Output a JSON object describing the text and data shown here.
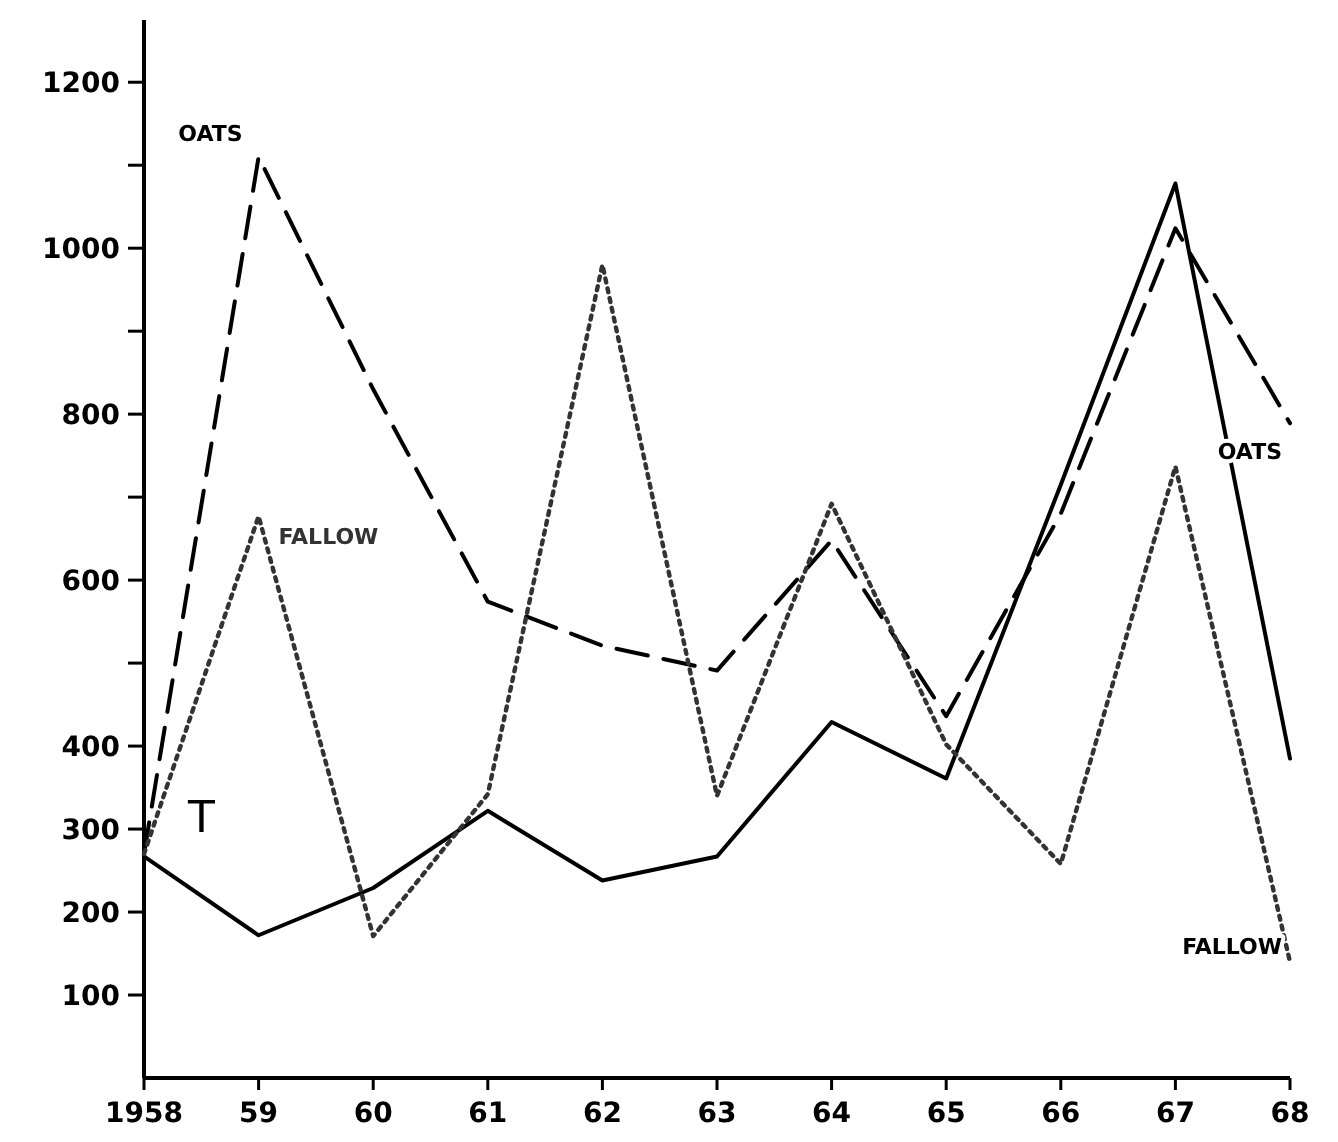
{
  "chart_data": {
    "type": "line",
    "x": [
      1958,
      1959,
      1960,
      1961,
      1962,
      1963,
      1964,
      1965,
      1966,
      1967,
      1968
    ],
    "xlim": [
      1958,
      1968
    ],
    "xticks": [
      1958,
      {
        "value": 1959,
        "label": "59"
      },
      {
        "value": 1960,
        "label": "60"
      },
      {
        "value": 1961,
        "label": "61"
      },
      {
        "value": 1962,
        "label": "62"
      },
      {
        "value": 1963,
        "label": "63"
      },
      {
        "value": 1964,
        "label": "64"
      },
      {
        "value": 1965,
        "label": "65"
      },
      {
        "value": 1966,
        "label": "66"
      },
      {
        "value": 1967,
        "label": "67"
      },
      {
        "value": 1968,
        "label": "68"
      }
    ],
    "ylim": [
      0,
      1275
    ],
    "yticks": [
      100,
      200,
      300,
      400,
      {
        "value": 500,
        "label": null
      },
      600,
      {
        "value": 700,
        "label": null
      },
      800,
      {
        "value": 900,
        "label": null
      },
      1000,
      {
        "value": 1100,
        "label": null
      },
      1200
    ],
    "series": [
      {
        "name": "T",
        "color": "#000000",
        "line_style": "solid",
        "values": [
          267,
          172,
          229,
          322,
          238,
          267,
          429,
          361,
          715,
          1078,
          385
        ]
      },
      {
        "name": "OATS",
        "color": "#000000",
        "line_style": "dashed",
        "values": [
          270,
          1110,
          830,
          574,
          521,
          491,
          648,
          436,
          680,
          1024,
          789
        ]
      },
      {
        "name": "FALLOW",
        "color": "#333333",
        "line_style": "dotted",
        "values": [
          270,
          677,
          171,
          342,
          980,
          340,
          692,
          402,
          258,
          737,
          140
        ]
      }
    ],
    "annotations": [
      {
        "text": "OATS",
        "x": 1968,
        "y": 789
      },
      {
        "text": "FALLOW",
        "x": 1968,
        "y": 140
      }
    ],
    "grid": false,
    "legend": false,
    "marker": "none"
  }
}
